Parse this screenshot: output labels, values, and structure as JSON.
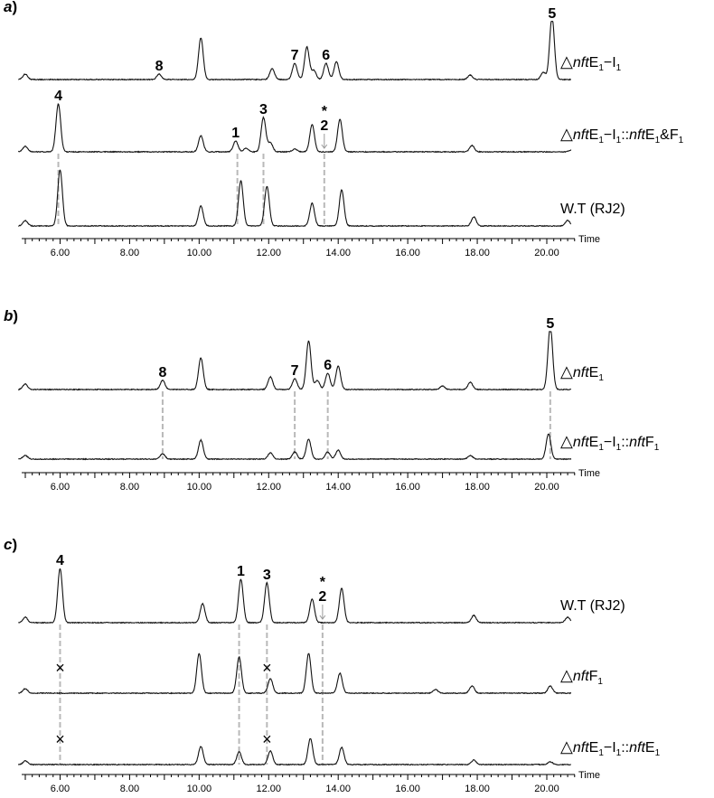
{
  "chart_data": [
    {
      "type": "line",
      "panel": "a",
      "xlabel": "Time",
      "xlim": [
        4.6,
        21.2
      ],
      "xticks": [
        "6.00",
        "8.00",
        "10.00",
        "12.00",
        "14.00",
        "16.00",
        "18.00",
        "20.00"
      ],
      "xtick_values": [
        6,
        8,
        10,
        12,
        14,
        16,
        18,
        20
      ],
      "series": [
        {
          "name": "△nftE1−I1",
          "baseline": 88,
          "peaks": [
            [
              5.0,
              6
            ],
            [
              8.85,
              6
            ],
            [
              10.05,
              46
            ],
            [
              12.1,
              12
            ],
            [
              12.75,
              18
            ],
            [
              13.1,
              36
            ],
            [
              13.3,
              10
            ],
            [
              13.65,
              18
            ],
            [
              13.95,
              20
            ],
            [
              17.8,
              5
            ],
            [
              19.9,
              8
            ],
            [
              20.15,
              70
            ]
          ],
          "saturated_peaks": [
            [
              20.15,
              64
            ]
          ]
        },
        {
          "name": "△nftE1−I1::nftE1&F1",
          "baseline": 168,
          "peaks": [
            [
              5.0,
              6
            ],
            [
              5.95,
              53
            ],
            [
              10.05,
              18
            ],
            [
              11.05,
              12
            ],
            [
              11.35,
              4
            ],
            [
              11.85,
              38
            ],
            [
              12.05,
              10
            ],
            [
              12.75,
              3
            ],
            [
              13.25,
              30
            ],
            [
              14.05,
              36
            ],
            [
              17.85,
              7
            ],
            [
              20.7,
              2
            ]
          ],
          "saturated_peaks": []
        },
        {
          "name": "W.T (RJ2)",
          "baseline": 250,
          "peaks": [
            [
              5.0,
              6
            ],
            [
              6.0,
              62
            ],
            [
              10.05,
              22
            ],
            [
              11.2,
              50
            ],
            [
              11.95,
              44
            ],
            [
              13.25,
              25
            ],
            [
              14.1,
              40
            ],
            [
              17.9,
              10
            ],
            [
              20.6,
              6
            ]
          ],
          "saturated_peaks": []
        }
      ],
      "peak_labels": [
        {
          "text": "8",
          "x": 8.85,
          "series": 0
        },
        {
          "text": "7",
          "x": 12.75,
          "series": 0
        },
        {
          "text": "6",
          "x": 13.65,
          "series": 0
        },
        {
          "text": "5",
          "x": 20.15,
          "series": 0
        },
        {
          "text": "4",
          "x": 5.95,
          "series": 1
        },
        {
          "text": "1",
          "x": 11.05,
          "series": 1
        },
        {
          "text": "3",
          "x": 11.85,
          "series": 1
        },
        {
          "text": "2",
          "x": 13.6,
          "series": 1,
          "starred": true,
          "arrow": true
        }
      ],
      "dashed_guides": [
        {
          "x": 5.95,
          "from_series": 1,
          "to_series": 2
        },
        {
          "x": 11.1,
          "from_series": 1,
          "to_series": 2
        },
        {
          "x": 11.85,
          "from_series": 1,
          "to_series": 2
        },
        {
          "x": 13.6,
          "from_series": 1,
          "to_series": 2
        }
      ]
    },
    {
      "type": "line",
      "panel": "b",
      "xlabel": "Time",
      "xlim": [
        4.6,
        21.2
      ],
      "xticks": [
        "6.00",
        "8.00",
        "10.00",
        "12.00",
        "14.00",
        "16.00",
        "18.00",
        "20.00"
      ],
      "xtick_values": [
        6,
        8,
        10,
        12,
        14,
        16,
        18,
        20
      ],
      "series": [
        {
          "name": "△nftE1",
          "baseline": 431,
          "peaks": [
            [
              5.0,
              6
            ],
            [
              8.95,
              10
            ],
            [
              10.05,
              35
            ],
            [
              12.05,
              14
            ],
            [
              12.75,
              12
            ],
            [
              13.15,
              54
            ],
            [
              13.4,
              10
            ],
            [
              13.7,
              18
            ],
            [
              14.0,
              26
            ],
            [
              17.0,
              4
            ],
            [
              17.8,
              8
            ],
            [
              20.1,
              70
            ]
          ],
          "saturated_peaks": [
            [
              20.1,
              64
            ]
          ]
        },
        {
          "name": "△nftE1−I1::nftF1",
          "baseline": 508,
          "peaks": [
            [
              5.0,
              4
            ],
            [
              8.95,
              6
            ],
            [
              10.05,
              21
            ],
            [
              12.05,
              7
            ],
            [
              12.75,
              8
            ],
            [
              13.15,
              22
            ],
            [
              13.7,
              8
            ],
            [
              14.0,
              10
            ],
            [
              17.8,
              4
            ],
            [
              20.05,
              28
            ]
          ],
          "saturated_peaks": []
        }
      ],
      "peak_labels": [
        {
          "text": "8",
          "x": 8.95,
          "series": 0
        },
        {
          "text": "7",
          "x": 12.75,
          "series": 0
        },
        {
          "text": "6",
          "x": 13.7,
          "series": 0
        },
        {
          "text": "5",
          "x": 20.1,
          "series": 0
        }
      ],
      "dashed_guides": [
        {
          "x": 8.95,
          "from_series": 0,
          "to_series": 1
        },
        {
          "x": 12.75,
          "from_series": 0,
          "to_series": 1
        },
        {
          "x": 13.7,
          "from_series": 0,
          "to_series": 1
        },
        {
          "x": 20.1,
          "from_series": 0,
          "to_series": 1
        }
      ]
    },
    {
      "type": "line",
      "panel": "c",
      "xlabel": "Time",
      "xlim": [
        4.6,
        21.2
      ],
      "xticks": [
        "6.00",
        "8.00",
        "10.00",
        "12.00",
        "14.00",
        "16.00",
        "18.00",
        "20.00"
      ],
      "xtick_values": [
        6,
        8,
        10,
        12,
        14,
        16,
        18,
        20
      ],
      "series": [
        {
          "name": "W.T (RJ2)",
          "baseline": 689,
          "peaks": [
            [
              5.0,
              6
            ],
            [
              6.0,
              60
            ],
            [
              10.1,
              21
            ],
            [
              11.2,
              48
            ],
            [
              11.95,
              44
            ],
            [
              13.25,
              26
            ],
            [
              14.1,
              38
            ],
            [
              17.9,
              8
            ],
            [
              20.6,
              6
            ]
          ],
          "saturated_peaks": []
        },
        {
          "name": "△nftF1",
          "baseline": 767,
          "peaks": [
            [
              5.0,
              5
            ],
            [
              10.0,
              44
            ],
            [
              11.15,
              40
            ],
            [
              12.05,
              16
            ],
            [
              13.15,
              44
            ],
            [
              14.05,
              22
            ],
            [
              16.8,
              4
            ],
            [
              17.85,
              8
            ],
            [
              20.1,
              8
            ]
          ],
          "saturated_peaks": []
        },
        {
          "name": "△nftE1−I1::nftE1",
          "baseline": 846,
          "peaks": [
            [
              5.0,
              4
            ],
            [
              10.05,
              20
            ],
            [
              11.15,
              14
            ],
            [
              12.05,
              15
            ],
            [
              13.2,
              29
            ],
            [
              14.1,
              19
            ],
            [
              17.9,
              5
            ],
            [
              20.1,
              3
            ]
          ],
          "saturated_peaks": []
        }
      ],
      "peak_labels": [
        {
          "text": "4",
          "x": 6.0,
          "series": 0
        },
        {
          "text": "1",
          "x": 11.2,
          "series": 0
        },
        {
          "text": "3",
          "x": 11.95,
          "series": 0
        },
        {
          "text": "2",
          "x": 13.55,
          "series": 0,
          "starred": true,
          "arrow": true
        }
      ],
      "dashed_guides": [
        {
          "x": 6.0,
          "from_series": 0,
          "to_series": 2,
          "absent_marks": [
            1,
            2
          ]
        },
        {
          "x": 11.15,
          "from_series": 0,
          "to_series": 2
        },
        {
          "x": 11.95,
          "from_series": 0,
          "to_series": 2,
          "absent_marks": [
            1,
            2
          ]
        },
        {
          "x": 13.55,
          "from_series": 0,
          "to_series": 2
        }
      ]
    }
  ],
  "panel_labels": [
    "a",
    "b",
    "c"
  ],
  "trace_labels": {
    "a": [
      {
        "symbol": "△",
        "italic": "nft",
        "main": "E",
        "sub": "1",
        "rest": "−I",
        "sub2": "1",
        "tail": ""
      },
      {
        "symbol": "△",
        "italic": "nft",
        "main": "E",
        "sub": "1",
        "rest": "−I",
        "sub2": "1",
        "tail": "::",
        "italic2": "nft",
        "main2": "E",
        "sub3": "1",
        "end": "&F",
        "sub4": "1"
      },
      {
        "plain": "W.T (RJ2)"
      }
    ],
    "b": [
      {
        "symbol": "△",
        "italic": "nft",
        "main": "E",
        "sub": "1"
      },
      {
        "symbol": "△",
        "italic": "nft",
        "main": "E",
        "sub": "1",
        "rest": "−I",
        "sub2": "1",
        "tail": "::",
        "italic2": "nft",
        "main2": "F",
        "sub3": "1"
      }
    ],
    "c": [
      {
        "plain": "W.T (RJ2)"
      },
      {
        "symbol": "△",
        "italic": "nft",
        "main": "F",
        "sub": "1"
      },
      {
        "symbol": "△",
        "italic": "nft",
        "main": "E",
        "sub": "1",
        "rest": "−I",
        "sub2": "1",
        "tail": "::",
        "italic2": "nft",
        "main2": "E",
        "sub3": "1"
      }
    ]
  },
  "absent_marker": "×",
  "star_marker": "*",
  "colors": {
    "trace": "#111111",
    "guide": "#b9b9b9",
    "axis": "#000000"
  }
}
